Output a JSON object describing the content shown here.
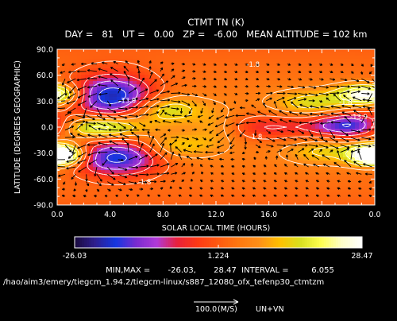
{
  "chart_data": {
    "type": "heatmap",
    "title": "CTMT TN (K)",
    "subtitle": "DAY =   81   UT =   0.00   ZP =   -6.00   MEAN ALTITUDE = 102 km",
    "xlabel": "SOLAR LOCAL TIME (HOURS)",
    "ylabel": "LATITUDE (DEGREES GEOGRAPHIC)",
    "xlim": [
      0,
      24
    ],
    "ylim": [
      -90,
      90
    ],
    "x_ticks": [
      "0.0",
      "4.0",
      "8.0",
      "12.0",
      "16.0",
      "20.0",
      "0.0"
    ],
    "y_ticks": [
      "90.0",
      "60.0",
      "30.0",
      "0.0",
      "-30.0",
      "-60.0",
      "-90.0"
    ],
    "grid": false,
    "colorscale": [
      "#1a0a3c",
      "#2e1f8f",
      "#1436e0",
      "#7a2bd0",
      "#b03ad8",
      "#e8203a",
      "#ff3a14",
      "#ff5a10",
      "#ff7810",
      "#ff9018",
      "#ffc000",
      "#d8e020",
      "#ffff50",
      "#ffffc8",
      "#ffffff"
    ],
    "zlim": [
      -26.03,
      28.47
    ],
    "colorbar_ticks": [
      "-26.03",
      "1.224",
      "28.47"
    ],
    "min": -26.03,
    "max": 28.47,
    "interval": 6.055,
    "contour_labels": [
      {
        "x": 5.3,
        "y": 28,
        "text": "-13.9"
      },
      {
        "x": 14.8,
        "y": 70,
        "text": "-1.8"
      },
      {
        "x": 22.8,
        "y": 9,
        "text": "-13.9"
      },
      {
        "x": 21.8,
        "y": 26,
        "text": "-1.8"
      },
      {
        "x": 15.0,
        "y": -14,
        "text": "-1.8"
      },
      {
        "x": 6.6,
        "y": -66,
        "text": "-1.8"
      }
    ],
    "anomalies": [
      {
        "x": 4.2,
        "y": 35,
        "amp": -26,
        "sx": 2.2,
        "sy": 18
      },
      {
        "x": 4.5,
        "y": -35,
        "amp": -24,
        "sx": 2.3,
        "sy": 15
      },
      {
        "x": 16.0,
        "y": 0,
        "amp": -11,
        "sx": 2.8,
        "sy": 11
      },
      {
        "x": 22.2,
        "y": 2,
        "amp": -24,
        "sx": 2.0,
        "sy": 10
      },
      {
        "x": 3.2,
        "y": 0,
        "amp": 20,
        "sx": 2.3,
        "sy": 9
      },
      {
        "x": 8.2,
        "y": 20,
        "amp": 13,
        "sx": 1.8,
        "sy": 11
      },
      {
        "x": 9.0,
        "y": -22,
        "amp": 9,
        "sx": 1.8,
        "sy": 10
      },
      {
        "x": 19.2,
        "y": 28,
        "amp": 11,
        "sx": 2.0,
        "sy": 10
      },
      {
        "x": 20.2,
        "y": -28,
        "amp": 9,
        "sx": 2.0,
        "sy": 10
      },
      {
        "x": 22.8,
        "y": 38,
        "amp": 16,
        "sx": 1.4,
        "sy": 8
      },
      {
        "x": 23.8,
        "y": -32,
        "amp": 22,
        "sx": 1.2,
        "sy": 8
      },
      {
        "x": 0.3,
        "y": -32,
        "amp": 22,
        "sx": 1.2,
        "sy": 8
      },
      {
        "x": 0.2,
        "y": 38,
        "amp": 14,
        "sx": 1.2,
        "sy": 8
      },
      {
        "x": 12.0,
        "y": 0,
        "amp": 7,
        "sx": 1.3,
        "sy": 15
      }
    ],
    "vector_reference": {
      "value": "100.0",
      "unit": "(M/S)"
    },
    "vector_label": "UN+VN"
  },
  "footer": {
    "minmax_text": "MIN,MAX =       -26.03,       28.47  INTERVAL =         6.055",
    "path": "/hao/aim3/emery/tiegcm_1.94.2/tiegcm-linux/s887_12080_ofx_tefenp30_ctmtzm"
  }
}
